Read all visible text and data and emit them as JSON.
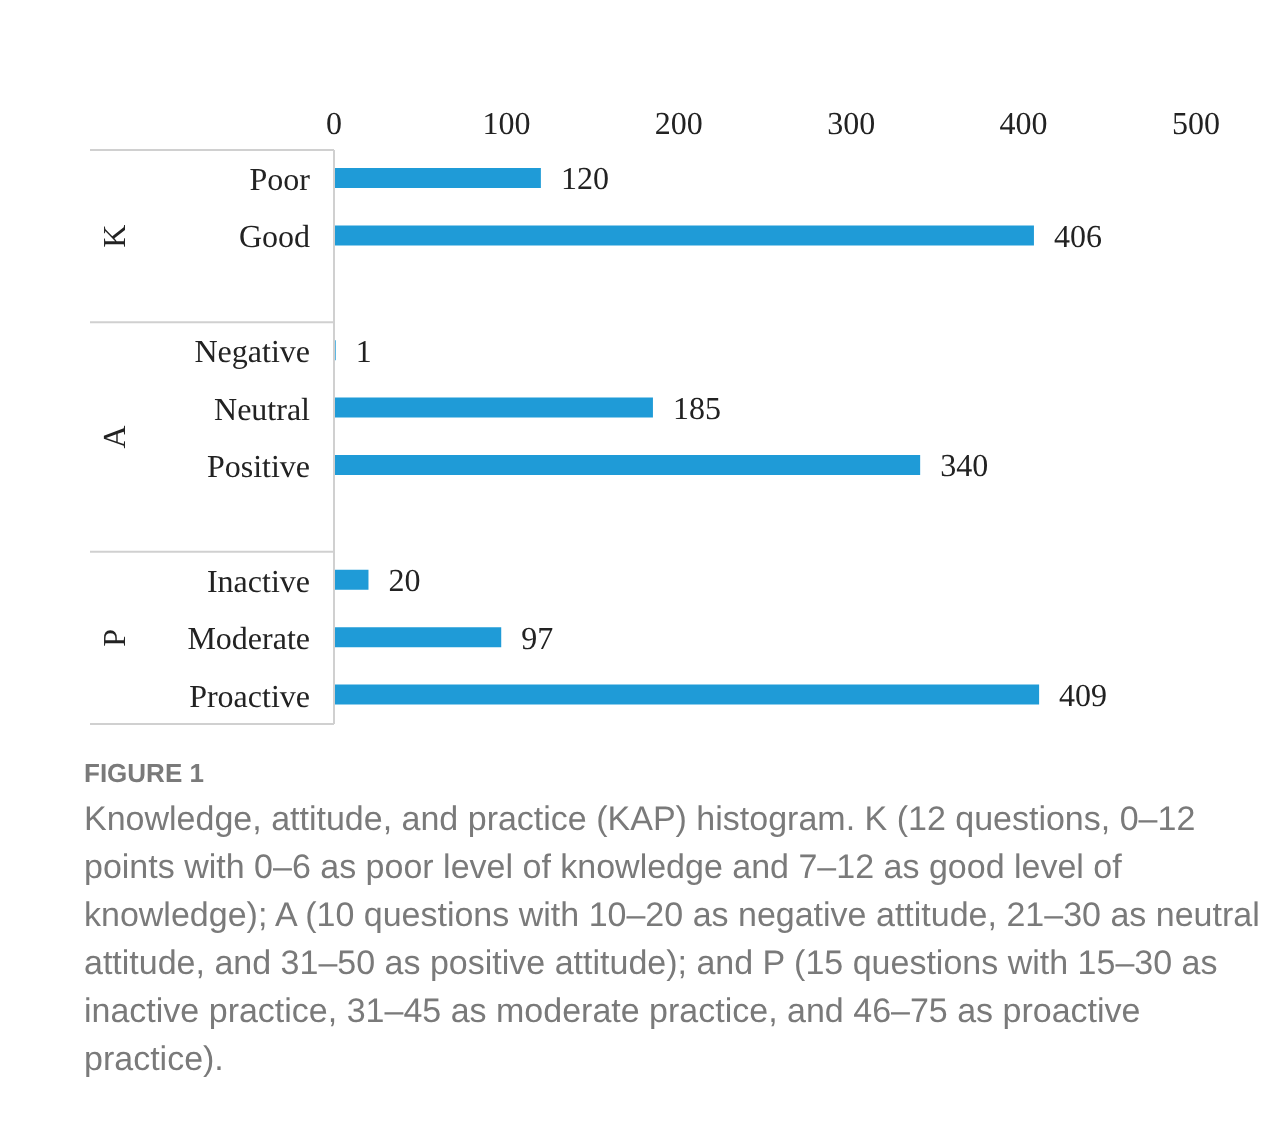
{
  "chart_data": {
    "type": "bar",
    "orientation": "horizontal",
    "categories": [
      "Poor",
      "Good",
      null,
      "Negative",
      "Neutral",
      "Positive",
      null,
      "Inactive",
      "Moderate",
      "Proactive"
    ],
    "values": [
      120,
      406,
      null,
      1,
      185,
      340,
      null,
      20,
      97,
      409
    ],
    "color": "#1f9bd7",
    "xlim": [
      0,
      500
    ],
    "xticks": [
      0,
      100,
      200,
      300,
      400,
      500
    ],
    "data_labels": true,
    "grid": false,
    "legend": false,
    "annotations": [
      "K",
      "A",
      "P",
      "FIGURE 1",
      "Knowledge, attitude, and practice (KAP) histogram. K (12 questions, 0–12 points with 0–6 as poor level of knowledge and 7–12 as good level of knowledge); A (10 questions with 10–20 as negative attitude, 21–30 as neutral attitude, and 31–50 as positive attitude); and P (15 questions with 15–30 as inactive practice, 31–45 as moderate practice, and 46–75 as proactive practice)."
    ]
  }
}
